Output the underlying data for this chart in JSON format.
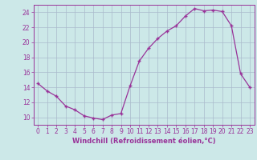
{
  "x": [
    0,
    1,
    2,
    3,
    4,
    5,
    6,
    7,
    8,
    9,
    10,
    11,
    12,
    13,
    14,
    15,
    16,
    17,
    18,
    19,
    20,
    21,
    22,
    23
  ],
  "y": [
    14.5,
    13.5,
    12.8,
    11.5,
    11.0,
    10.2,
    9.9,
    9.7,
    10.3,
    10.5,
    14.2,
    17.5,
    19.2,
    20.5,
    21.5,
    22.2,
    23.5,
    24.5,
    24.2,
    24.3,
    24.1,
    22.2,
    15.8,
    14.0
  ],
  "xlabel": "Windchill (Refroidissement éolien,°C)",
  "ylim": [
    9,
    25
  ],
  "xlim": [
    -0.5,
    23.5
  ],
  "yticks": [
    10,
    12,
    14,
    16,
    18,
    20,
    22,
    24
  ],
  "xticks": [
    0,
    1,
    2,
    3,
    4,
    5,
    6,
    7,
    8,
    9,
    10,
    11,
    12,
    13,
    14,
    15,
    16,
    17,
    18,
    19,
    20,
    21,
    22,
    23
  ],
  "line_color": "#993399",
  "marker": "+",
  "bg_color": "#cce8e8",
  "grid_color": "#aabbcc",
  "font_color": "#993399",
  "tick_fontsize": 5.5,
  "xlabel_fontsize": 6.0
}
